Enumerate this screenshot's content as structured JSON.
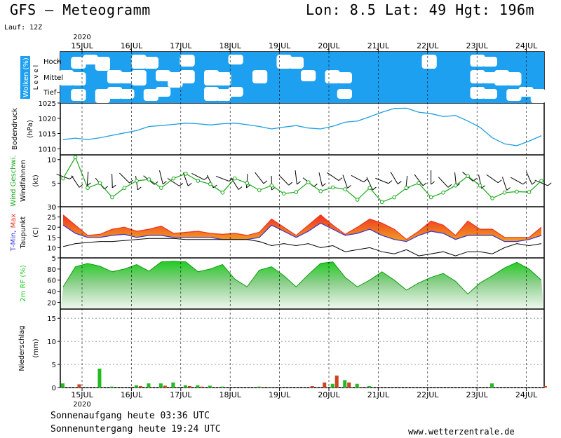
{
  "header": {
    "title": "GFS – Meteogramm",
    "coords": "Lon: 8.5 Lat: 49 Hgt: 196m",
    "run": "Lauf: 12Z"
  },
  "footer": {
    "sunrise": "Sonnenaufgang heute 03:36 UTC",
    "sunset": "Sonnenuntergang heute 19:24 UTC",
    "website": "www.wetterzentrale.de"
  },
  "colors": {
    "cloud_sky": "#1ea0f0",
    "cloud_white": "#ffffff",
    "pressure_line": "#1e9fe0",
    "wind_line": "#1aa81a",
    "temp_max": "#ee3322",
    "temp_min": "#3333dd",
    "temp_fill": "#f2a020",
    "humidity_fill": "#22cc22",
    "precip_green": "#22bb22",
    "precip_red": "#cc4422"
  },
  "chart_data": [
    {
      "id": "time_axis",
      "type": "table",
      "year_label": "2020",
      "days": [
        "15JUL",
        "16JUL",
        "17JUL",
        "18JUL",
        "19JUL",
        "20JUL",
        "21JUL",
        "22JUL",
        "23JUL",
        "24JUL"
      ]
    },
    {
      "id": "clouds",
      "type": "heatmap",
      "ylabel": "Wolken (%)",
      "ylabel2": "L e v e l",
      "levels": [
        "Hoch",
        "Mittel",
        "Tief"
      ],
      "x": [
        0,
        1,
        2,
        3,
        4,
        5,
        6,
        7,
        8,
        9,
        10,
        11,
        12,
        13,
        14,
        15,
        16,
        17,
        18,
        19,
        20,
        21,
        22,
        23,
        24,
        25,
        26,
        27,
        28,
        29,
        30,
        31,
        32,
        33,
        34,
        35,
        36,
        37,
        38,
        39
      ],
      "high_clear": [
        0,
        1,
        1,
        1,
        0,
        0,
        1,
        1,
        0,
        0,
        1,
        0,
        0,
        0,
        1,
        0,
        0,
        0,
        1,
        1,
        0,
        0,
        0,
        0,
        0,
        0,
        0,
        0,
        0,
        0,
        1,
        0,
        0,
        0,
        1,
        1,
        0,
        0,
        0,
        0
      ],
      "mid_clear": [
        1,
        1,
        0,
        0,
        1,
        1,
        1,
        0,
        1,
        1,
        1,
        0,
        1,
        1,
        0,
        0,
        1,
        0,
        0,
        0,
        1,
        0,
        1,
        1,
        0,
        0,
        0,
        0,
        0,
        0,
        0,
        0,
        0,
        0,
        1,
        1,
        1,
        1,
        0,
        0
      ],
      "low_clear": [
        0,
        1,
        0,
        1,
        1,
        1,
        0,
        1,
        1,
        0,
        0,
        0,
        1,
        1,
        1,
        0,
        0,
        0,
        0,
        0,
        0,
        0,
        0,
        1,
        0,
        0,
        0,
        0,
        0,
        0,
        0,
        0,
        0,
        0,
        1,
        1,
        0,
        1,
        1,
        1
      ]
    },
    {
      "id": "pressure",
      "type": "line",
      "ylabel": "Bodendruck",
      "yunit": "(hPa)",
      "ylim": [
        1008,
        1025
      ],
      "yticks": [
        1010,
        1015,
        1020,
        1025
      ],
      "x": [
        0,
        1,
        2,
        3,
        4,
        5,
        6,
        7,
        8,
        9,
        10,
        11,
        12,
        13,
        14,
        15,
        16,
        17,
        18,
        19,
        20,
        21,
        22,
        23,
        24,
        25,
        26,
        27,
        28,
        29,
        30,
        31,
        32,
        33,
        34,
        35,
        36,
        37,
        38,
        39
      ],
      "series": [
        {
          "values": [
            1013.0,
            1013.5,
            1013.0,
            1013.6,
            1014.4,
            1015.2,
            1016.0,
            1017.3,
            1017.6,
            1018.0,
            1018.4,
            1018.2,
            1017.8,
            1018.2,
            1018.4,
            1017.9,
            1017.3,
            1016.5,
            1017.1,
            1017.6,
            1016.8,
            1016.5,
            1017.4,
            1018.7,
            1019.1,
            1020.5,
            1022.0,
            1023.2,
            1023.3,
            1022.0,
            1021.5,
            1020.6,
            1020.9,
            1019.1,
            1017.0,
            1013.6,
            1011.6,
            1011.0,
            1012.5,
            1014.3
          ]
        }
      ]
    },
    {
      "id": "wind",
      "type": "line",
      "ylabel": "Wind Geschwi.",
      "ylabel2": "Windfahnen",
      "yunit": "(kt)",
      "ylim": [
        0,
        11
      ],
      "yticks": [
        0,
        5,
        10
      ],
      "x": [
        0,
        1,
        2,
        3,
        4,
        5,
        6,
        7,
        8,
        9,
        10,
        11,
        12,
        13,
        14,
        15,
        16,
        17,
        18,
        19,
        20,
        21,
        22,
        23,
        24,
        25,
        26,
        27,
        28,
        29,
        30,
        31,
        32,
        33,
        34,
        35,
        36,
        37,
        38,
        39
      ],
      "series": [
        {
          "name": "Wind Geschwi.",
          "values": [
            6,
            10.5,
            4,
            5,
            2,
            4,
            5.5,
            5.8,
            4,
            6,
            7,
            5.5,
            4.8,
            3,
            6,
            5,
            3.5,
            4.5,
            2.8,
            3.1,
            5.2,
            3.3,
            4.1,
            3.7,
            1.5,
            4,
            1,
            2,
            4,
            5,
            2,
            3,
            4.5,
            6.5,
            4.5,
            1.8,
            3,
            3.2,
            3.1,
            5.5
          ]
        }
      ]
    },
    {
      "id": "temperature",
      "type": "area",
      "ylabel": "T-Min, Max",
      "ylabel2": "Taupunkt",
      "yunit": "(C)",
      "ylim": [
        5,
        30
      ],
      "yticks": [
        5,
        10,
        15,
        20,
        25,
        30
      ],
      "x": [
        0,
        1,
        2,
        3,
        4,
        5,
        6,
        7,
        8,
        9,
        10,
        11,
        12,
        13,
        14,
        15,
        16,
        17,
        18,
        19,
        20,
        21,
        22,
        23,
        24,
        25,
        26,
        27,
        28,
        29,
        30,
        31,
        32,
        33,
        34,
        35,
        36,
        37,
        38,
        39
      ],
      "series": [
        {
          "name": "Max",
          "values": [
            26,
            21,
            16,
            16.5,
            19,
            20,
            18,
            19,
            20.5,
            17,
            17.5,
            18,
            17,
            16.5,
            17,
            16,
            17.5,
            24,
            20,
            16,
            21,
            26,
            21,
            16.5,
            20,
            24,
            22,
            19,
            14,
            18,
            23,
            21,
            16,
            23,
            19,
            19,
            15,
            15,
            15,
            20
          ]
        },
        {
          "name": "Min",
          "values": [
            21,
            17,
            15,
            15,
            16,
            16.5,
            15,
            16,
            16,
            15,
            15,
            15,
            15,
            14,
            14,
            14,
            15,
            21,
            18,
            15,
            18,
            22,
            19,
            16,
            17,
            19,
            16,
            14,
            13,
            16,
            18,
            17,
            14,
            16,
            16,
            16,
            13,
            13,
            14,
            16
          ]
        },
        {
          "name": "Taupunkt",
          "values": [
            10.5,
            12,
            12.5,
            13,
            13,
            13.5,
            14,
            14.5,
            14.5,
            14.5,
            14,
            14,
            14,
            14,
            14,
            14,
            13,
            11,
            12,
            11,
            12,
            10,
            11,
            8,
            9,
            10,
            8,
            7,
            9,
            6,
            7,
            8,
            6,
            8,
            8,
            7,
            10,
            12,
            11,
            12
          ]
        }
      ]
    },
    {
      "id": "humidity",
      "type": "area",
      "ylabel": "2m RF (%)",
      "ylim": [
        8,
        100
      ],
      "yticks": [
        20,
        40,
        60,
        80
      ],
      "x": [
        0,
        1,
        2,
        3,
        4,
        5,
        6,
        7,
        8,
        9,
        10,
        11,
        12,
        13,
        14,
        15,
        16,
        17,
        18,
        19,
        20,
        21,
        22,
        23,
        24,
        25,
        26,
        27,
        28,
        29,
        30,
        31,
        32,
        33,
        34,
        35,
        36,
        37,
        38,
        39
      ],
      "series": [
        {
          "values": [
            48,
            84,
            90,
            85,
            75,
            80,
            88,
            76,
            93,
            94,
            93,
            75,
            80,
            88,
            62,
            48,
            78,
            84,
            68,
            48,
            70,
            90,
            93,
            65,
            48,
            60,
            75,
            60,
            42,
            55,
            65,
            72,
            58,
            35,
            55,
            68,
            82,
            92,
            80,
            60
          ]
        }
      ]
    },
    {
      "id": "precipitation",
      "type": "bar",
      "ylabel": "Niederschlag",
      "yunit": "(mm)",
      "ylim": [
        0,
        17
      ],
      "yticks": [
        0,
        5,
        10,
        15
      ],
      "x": [
        0,
        1,
        2,
        3,
        4,
        5,
        6,
        7,
        8,
        9,
        10,
        11,
        12,
        13,
        14,
        15,
        16,
        17,
        18,
        19,
        20,
        21,
        22,
        23,
        24,
        25,
        26,
        27,
        28,
        29,
        30,
        31,
        32,
        33,
        34,
        35,
        36,
        37,
        38,
        39
      ],
      "series": [
        {
          "name": "green",
          "values": [
            0.9,
            0,
            0,
            4.1,
            0.2,
            0,
            0.5,
            0.9,
            0.9,
            1.1,
            0.5,
            0.5,
            0.4,
            0.2,
            0,
            0,
            0.2,
            0.1,
            0,
            0,
            0,
            0,
            0.8,
            1.6,
            0.8,
            0.3,
            0,
            0,
            0,
            0,
            0,
            0,
            0,
            0,
            0,
            0.9,
            0,
            0,
            0,
            0
          ]
        },
        {
          "name": "red",
          "values": [
            0,
            0.7,
            0,
            0,
            0,
            0,
            0.3,
            0,
            0.4,
            0,
            0.3,
            0.2,
            0,
            0,
            0,
            0,
            0.1,
            0,
            0,
            0,
            0.3,
            1.1,
            2.6,
            1.1,
            0.1,
            0,
            0,
            0,
            0,
            0,
            0,
            0,
            0,
            0,
            0,
            0,
            0,
            0,
            0,
            0.3
          ]
        }
      ]
    }
  ]
}
